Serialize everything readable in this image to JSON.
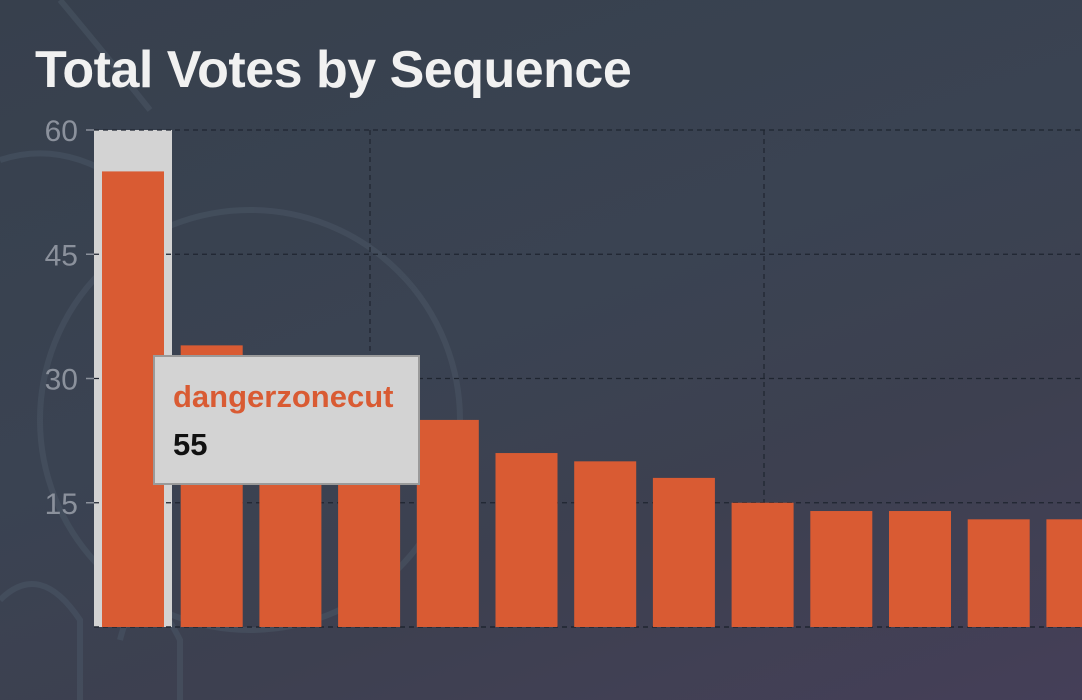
{
  "colors": {
    "bar": "#d95b33",
    "highlight": "#d3d3d3",
    "grid": "#1f2530",
    "axis_text": "#8b919c",
    "title": "#f1f1f1"
  },
  "chart_data": {
    "type": "bar",
    "title": "Total Votes by Sequence",
    "xlabel": "",
    "ylabel": "",
    "ylim": [
      0,
      60
    ],
    "yticks": [
      15,
      30,
      45,
      60
    ],
    "grid": true,
    "highlighted_index": 0,
    "values": [
      55,
      34,
      28,
      28,
      25,
      21,
      20,
      18,
      15,
      14,
      14,
      13,
      13
    ]
  },
  "tooltip": {
    "name": "dangerzonecut",
    "value": "55"
  }
}
